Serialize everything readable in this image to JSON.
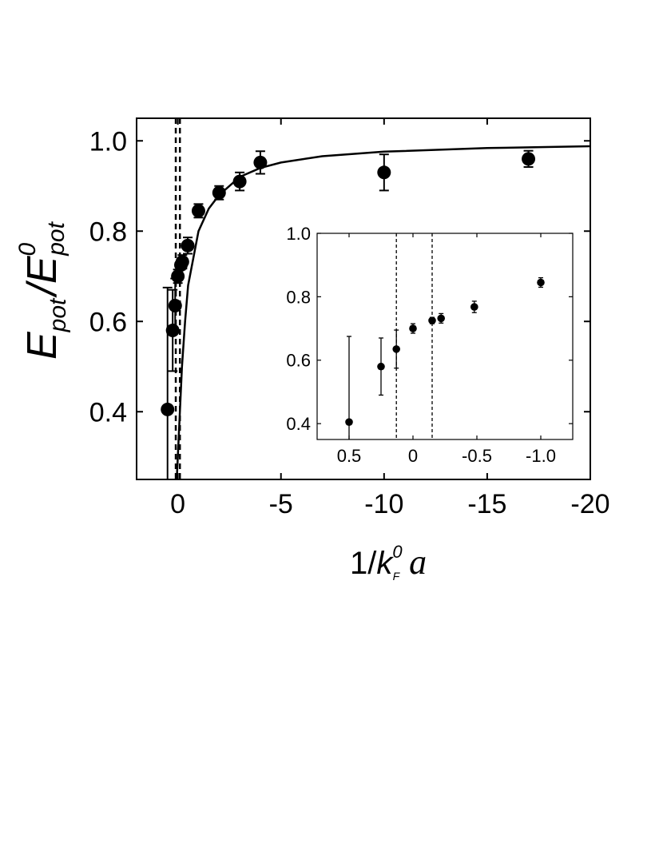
{
  "chart_data": [
    {
      "type": "scatter",
      "role": "main",
      "xlabel": {
        "prefix": "1/",
        "k": "k",
        "k_sup": "0",
        "k_sub": "F",
        "a": "a"
      },
      "ylabel": {
        "num": "E",
        "num_sub": "pot",
        "slash": "/",
        "den": "E",
        "den_sup": "0",
        "den_sub": "pot"
      },
      "xlim": [
        2,
        -20
      ],
      "ylim": [
        0.25,
        1.05
      ],
      "x_axis_reversed": true,
      "xticks": [
        0,
        -5,
        -10,
        -15,
        -20
      ],
      "xtick_labels": [
        "0",
        "-5",
        "-10",
        "-15",
        "-20"
      ],
      "yticks": [
        0.4,
        0.6,
        0.8,
        1.0
      ],
      "ytick_labels": [
        "0.4",
        "0.6",
        "0.8",
        "1.0"
      ],
      "vlines_dashed": [
        0.1,
        -0.1
      ],
      "series": [
        {
          "marker": "circle",
          "points": [
            {
              "x": 0.5,
              "y": 0.405,
              "err": 0.27
            },
            {
              "x": 0.25,
              "y": 0.58,
              "err": 0.09
            },
            {
              "x": 0.13,
              "y": 0.635,
              "err": 0.06
            },
            {
              "x": 0.0,
              "y": 0.7,
              "err": 0.015
            },
            {
              "x": -0.15,
              "y": 0.725,
              "err": 0.01
            },
            {
              "x": -0.22,
              "y": 0.732,
              "err": 0.015
            },
            {
              "x": -0.48,
              "y": 0.768,
              "err": 0.018
            },
            {
              "x": -1.0,
              "y": 0.845,
              "err": 0.015
            },
            {
              "x": -2.0,
              "y": 0.885,
              "err": 0.015
            },
            {
              "x": -3.0,
              "y": 0.91,
              "err": 0.02
            },
            {
              "x": -4.0,
              "y": 0.952,
              "err": 0.025
            },
            {
              "x": -10.0,
              "y": 0.93,
              "err": 0.04
            },
            {
              "x": -17.0,
              "y": 0.96,
              "err": 0.018
            }
          ]
        },
        {
          "type": "line",
          "curve": [
            {
              "x": 0.05,
              "y": 0.25
            },
            {
              "x": -0.1,
              "y": 0.4
            },
            {
              "x": -0.2,
              "y": 0.5
            },
            {
              "x": -0.35,
              "y": 0.6
            },
            {
              "x": -0.5,
              "y": 0.68
            },
            {
              "x": -0.75,
              "y": 0.74
            },
            {
              "x": -1.0,
              "y": 0.8
            },
            {
              "x": -1.5,
              "y": 0.85
            },
            {
              "x": -2.0,
              "y": 0.88
            },
            {
              "x": -3.0,
              "y": 0.92
            },
            {
              "x": -4.0,
              "y": 0.94
            },
            {
              "x": -5.0,
              "y": 0.952
            },
            {
              "x": -7.0,
              "y": 0.966
            },
            {
              "x": -10.0,
              "y": 0.976
            },
            {
              "x": -15.0,
              "y": 0.984
            },
            {
              "x": -20.0,
              "y": 0.988
            }
          ]
        }
      ]
    },
    {
      "type": "scatter",
      "role": "inset",
      "xlim": [
        0.75,
        -1.25
      ],
      "ylim": [
        0.35,
        1.0
      ],
      "x_axis_reversed": true,
      "xticks": [
        0.5,
        0,
        -0.5,
        -1.0
      ],
      "xtick_labels": [
        "0.5",
        "0",
        "-0.5",
        "-1.0"
      ],
      "yticks": [
        0.4,
        0.6,
        0.8,
        1.0
      ],
      "ytick_labels": [
        "0.4",
        "0.6",
        "0.8",
        "1.0"
      ],
      "vlines_dashed": [
        0.13,
        -0.15
      ],
      "series": [
        {
          "marker": "circle",
          "points": [
            {
              "x": 0.5,
              "y": 0.405,
              "err": 0.27
            },
            {
              "x": 0.25,
              "y": 0.58,
              "err": 0.09
            },
            {
              "x": 0.13,
              "y": 0.635,
              "err": 0.06
            },
            {
              "x": 0.0,
              "y": 0.7,
              "err": 0.015
            },
            {
              "x": -0.15,
              "y": 0.725,
              "err": 0.01
            },
            {
              "x": -0.22,
              "y": 0.732,
              "err": 0.015
            },
            {
              "x": -0.48,
              "y": 0.768,
              "err": 0.018
            },
            {
              "x": -1.0,
              "y": 0.845,
              "err": 0.015
            }
          ]
        }
      ]
    }
  ]
}
